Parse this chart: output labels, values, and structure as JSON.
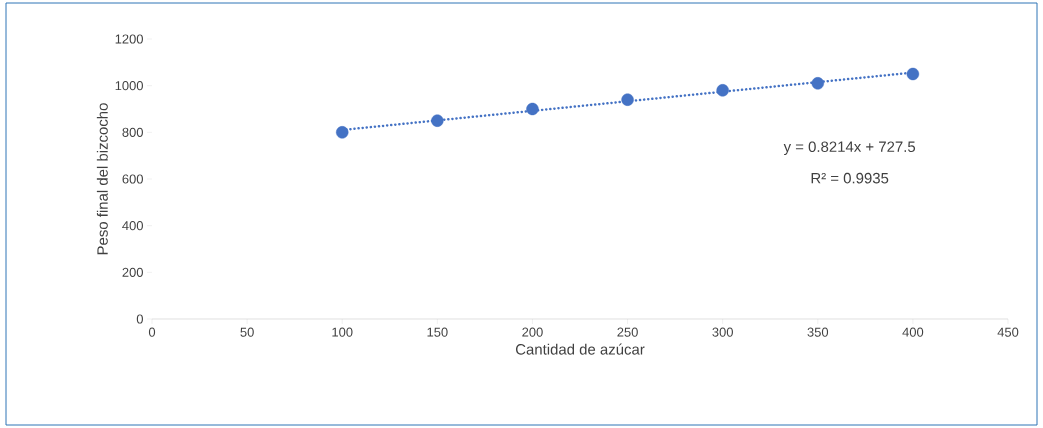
{
  "chart_data": {
    "type": "scatter",
    "xlabel": "Cantidad de azúcar",
    "ylabel": "Peso final del bizcocho",
    "x": [
      100,
      150,
      200,
      250,
      300,
      350,
      400
    ],
    "series": [
      {
        "type": "scatter",
        "color": "#4472c4",
        "marker": "circle",
        "values": [
          800,
          850,
          900,
          940,
          980,
          1010,
          1050
        ]
      },
      {
        "type": "line",
        "color": "#4472c4",
        "line_style": "dotted",
        "marker": "none",
        "x": [
          100,
          400
        ],
        "values": [
          810,
          1056
        ]
      }
    ],
    "xlim": [
      0,
      450
    ],
    "xticks": [
      0,
      50,
      100,
      150,
      200,
      250,
      300,
      350,
      400,
      450
    ],
    "ylim": [
      0,
      1200
    ],
    "yticks": [
      0,
      200,
      400,
      600,
      800,
      1000,
      1200
    ],
    "grid": false,
    "annotations": [
      "y = 0.8214x + 727.5",
      "R² = 0.9935"
    ]
  }
}
